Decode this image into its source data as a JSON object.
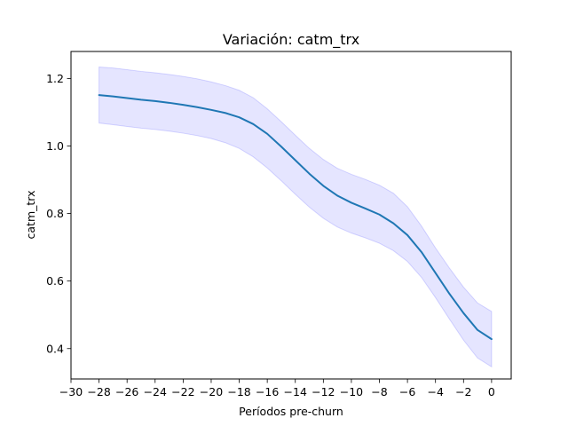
{
  "chart_data": {
    "type": "line",
    "title": "Variación: catm_trx",
    "xlabel": "Períodos pre-churn",
    "ylabel": "catm_trx",
    "xlim": [
      -30,
      1.4
    ],
    "ylim": [
      0.31,
      1.28
    ],
    "grid": false,
    "x_ticks": [
      -30,
      -28,
      -26,
      -24,
      -22,
      -20,
      -18,
      -16,
      -14,
      -12,
      -10,
      -8,
      -6,
      -4,
      -2,
      0
    ],
    "x_tick_labels": [
      "−30",
      "−28",
      "−26",
      "−24",
      "−22",
      "−20",
      "−18",
      "−16",
      "−14",
      "−12",
      "−10",
      "−8",
      "−6",
      "−4",
      "−2",
      "0"
    ],
    "y_ticks": [
      0.4,
      0.6,
      0.8,
      1.0,
      1.2
    ],
    "y_tick_labels": [
      "0.4",
      "0.6",
      "0.8",
      "1.0",
      "1.2"
    ],
    "colors": {
      "line": "#1f77b4",
      "band": "#0000ff"
    },
    "series": [
      {
        "x": [
          -28,
          -27,
          -26,
          -25,
          -24,
          -23,
          -22,
          -21,
          -20,
          -19,
          -18,
          -17,
          -16,
          -15,
          -14,
          -13,
          -12,
          -11,
          -10,
          -9,
          -8,
          -7,
          -6,
          -5,
          -4,
          -3,
          -2,
          -1,
          0
        ],
        "y": [
          1.151,
          1.147,
          1.142,
          1.137,
          1.133,
          1.128,
          1.122,
          1.115,
          1.107,
          1.098,
          1.085,
          1.065,
          1.036,
          0.998,
          0.958,
          0.918,
          0.882,
          0.853,
          0.832,
          0.815,
          0.797,
          0.771,
          0.736,
          0.686,
          0.624,
          0.562,
          0.505,
          0.455,
          0.428
        ],
        "lower": [
          1.068,
          1.063,
          1.058,
          1.053,
          1.049,
          1.044,
          1.038,
          1.031,
          1.022,
          1.01,
          0.993,
          0.968,
          0.935,
          0.897,
          0.857,
          0.819,
          0.786,
          0.76,
          0.742,
          0.728,
          0.712,
          0.69,
          0.658,
          0.611,
          0.551,
          0.487,
          0.425,
          0.372,
          0.346
        ],
        "upper": [
          1.234,
          1.231,
          1.226,
          1.221,
          1.217,
          1.212,
          1.206,
          1.199,
          1.19,
          1.179,
          1.165,
          1.143,
          1.11,
          1.072,
          1.032,
          0.993,
          0.96,
          0.934,
          0.916,
          0.901,
          0.884,
          0.86,
          0.82,
          0.763,
          0.698,
          0.638,
          0.582,
          0.535,
          0.51
        ]
      }
    ]
  }
}
